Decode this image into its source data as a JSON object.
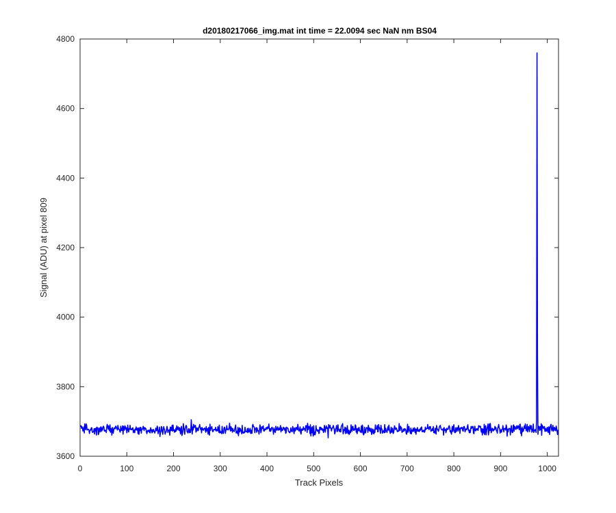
{
  "colors": {
    "line": "#0000ff",
    "axes": "#262626",
    "background": "#ffffff"
  },
  "chart_data": {
    "type": "line",
    "title": "d20180217066_img.mat int time = 22.0094 sec  NaN nm BS04",
    "xlabel": "Track Pixels",
    "ylabel": "Signal (ADU) at pixel 809",
    "xlim": [
      0,
      1024
    ],
    "ylim": [
      3600,
      4800
    ],
    "xticks": [
      "0",
      "100",
      "200",
      "300",
      "400",
      "500",
      "600",
      "700",
      "800",
      "900",
      "1000"
    ],
    "yticks": [
      "3600",
      "3800",
      "4000",
      "4200",
      "4400",
      "4600",
      "4800"
    ],
    "grid": false,
    "legend": "none",
    "series": [
      {
        "color": "#0000ff",
        "baseline": 3677,
        "noise_range": [
          3653,
          3705
        ],
        "peak": {
          "x": 978,
          "y": 4760
        }
      }
    ]
  }
}
